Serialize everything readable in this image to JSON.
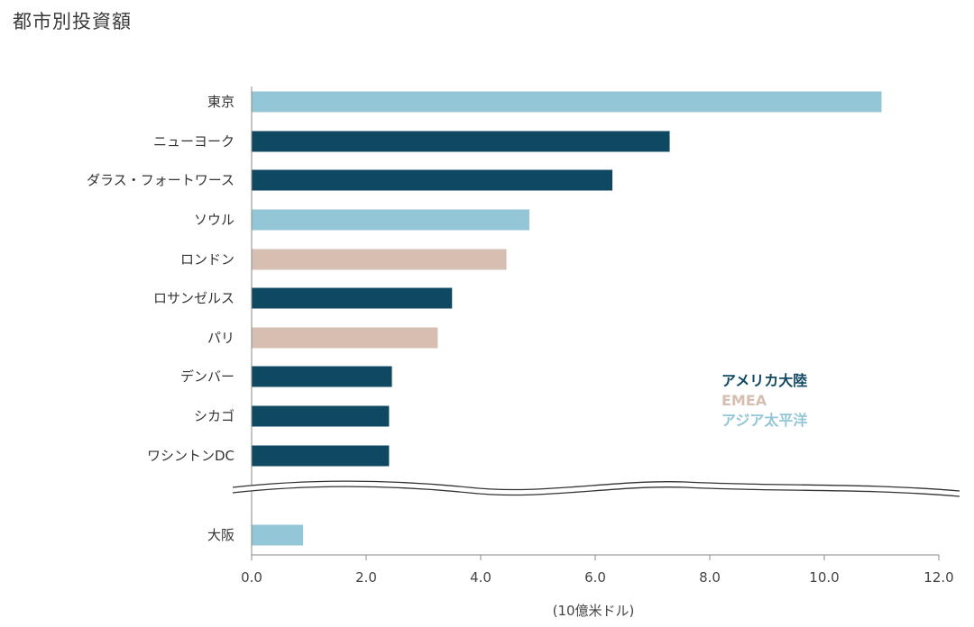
{
  "title": "都市別投資額",
  "chart_data": {
    "type": "bar",
    "orientation": "horizontal",
    "categories": [
      "東京",
      "ニューヨーク",
      "ダラス・フォートワース",
      "ソウル",
      "ロンドン",
      "ロサンゼルス",
      "パリ",
      "デンバー",
      "シカゴ",
      "ワシントンDC",
      "大阪"
    ],
    "values": [
      11.0,
      7.3,
      6.3,
      4.85,
      4.45,
      3.5,
      3.25,
      2.45,
      2.4,
      2.4,
      0.9
    ],
    "regions": [
      "アジア太平洋",
      "アメリカ大陸",
      "アメリカ大陸",
      "アジア太平洋",
      "EMEA",
      "アメリカ大陸",
      "EMEA",
      "アメリカ大陸",
      "アメリカ大陸",
      "アメリカ大陸",
      "アジア太平洋"
    ],
    "xlabel": "(10億米ドル)",
    "xlim": [
      0,
      12
    ],
    "xticks": [
      "0.0",
      "2.0",
      "4.0",
      "6.0",
      "8.0",
      "10.0",
      "12.0"
    ],
    "axis_break_before_last": true,
    "grid": false,
    "legend_position": "right",
    "legend": [
      {
        "name": "アメリカ大陸",
        "color": "#0f4961"
      },
      {
        "name": "EMEA",
        "color": "#d6bfb0"
      },
      {
        "name": "アジア太平洋",
        "color": "#93c6d6"
      }
    ]
  }
}
